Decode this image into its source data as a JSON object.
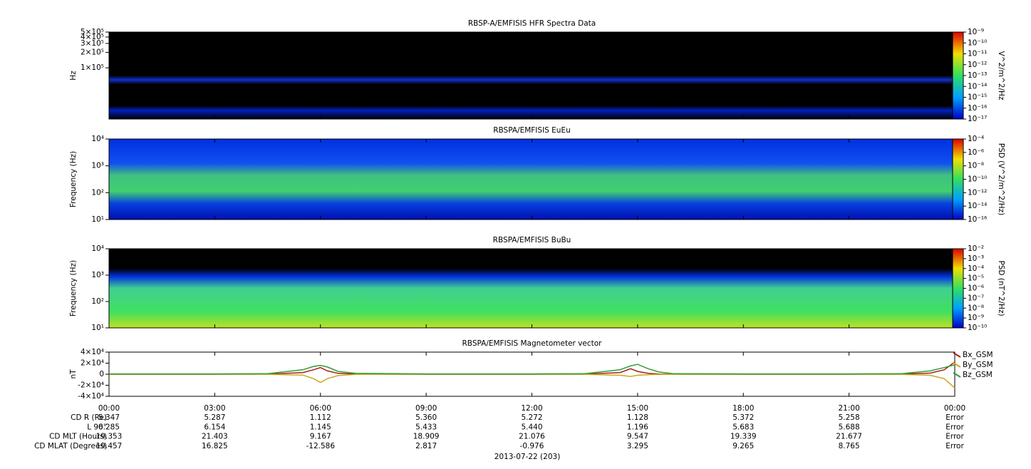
{
  "chart_data": [
    {
      "type": "spectrogram",
      "title": "RBSP-A/EMFISIS  HFR Spectra Data",
      "ylabel": "Hz",
      "log_scale": true,
      "ylim": [
        10000,
        500000
      ],
      "yticks": [
        {
          "value": 500000,
          "label": "5×10⁵"
        },
        {
          "value": 400000,
          "label": "4×10⁵"
        },
        {
          "value": 300000,
          "label": "3×10⁵"
        },
        {
          "value": 200000,
          "label": "2×10⁵"
        },
        {
          "value": 100000,
          "label": "1×10⁵"
        }
      ],
      "colorbar": {
        "label": "V^2/m^2/Hz",
        "lim": [
          1e-17,
          1e-09
        ],
        "ticks": [
          {
            "value": 1e-09,
            "label": "10⁻⁹"
          },
          {
            "value": 1e-10,
            "label": "10⁻¹⁰"
          },
          {
            "value": 1e-11,
            "label": "10⁻¹¹"
          },
          {
            "value": 1e-12,
            "label": "10⁻¹²"
          },
          {
            "value": 1e-13,
            "label": "10⁻¹³"
          },
          {
            "value": 1e-14,
            "label": "10⁻¹⁴"
          },
          {
            "value": 1e-15,
            "label": "10⁻¹⁵"
          },
          {
            "value": 1e-16,
            "label": "10⁻¹⁶"
          },
          {
            "value": 1e-17,
            "label": "10⁻¹⁷"
          }
        ]
      }
    },
    {
      "type": "spectrogram",
      "title": "RBSPA/EMFISIS  EuEu",
      "ylabel": "Frequency (Hz)",
      "log_scale": true,
      "ylim": [
        10,
        10000
      ],
      "yticks": [
        {
          "value": 10,
          "label": "10¹"
        },
        {
          "value": 100,
          "label": "10²"
        },
        {
          "value": 1000,
          "label": "10³"
        },
        {
          "value": 10000,
          "label": "10⁴"
        }
      ],
      "colorbar": {
        "label": "PSD (V^2/m^2/Hz)",
        "lim": [
          1e-16,
          0.0001
        ],
        "ticks": [
          {
            "value": 0.0001,
            "label": "10⁻⁴"
          },
          {
            "value": 1e-06,
            "label": "10⁻⁶"
          },
          {
            "value": 1e-08,
            "label": "10⁻⁸"
          },
          {
            "value": 1e-10,
            "label": "10⁻¹⁰"
          },
          {
            "value": 1e-12,
            "label": "10⁻¹²"
          },
          {
            "value": 1e-14,
            "label": "10⁻¹⁴"
          },
          {
            "value": 1e-16,
            "label": "10⁻¹⁶"
          }
        ]
      }
    },
    {
      "type": "spectrogram",
      "title": "RBSPA/EMFISIS  BuBu",
      "ylabel": "Frequency (Hz)",
      "log_scale": true,
      "ylim": [
        10,
        10000
      ],
      "yticks": [
        {
          "value": 10,
          "label": "10¹"
        },
        {
          "value": 100,
          "label": "10²"
        },
        {
          "value": 1000,
          "label": "10³"
        },
        {
          "value": 10000,
          "label": "10⁴"
        }
      ],
      "colorbar": {
        "label": "PSD (nT^2/Hz)",
        "lim": [
          1e-10,
          0.01
        ],
        "ticks": [
          {
            "value": 0.01,
            "label": "10⁻²"
          },
          {
            "value": 0.001,
            "label": "10⁻³"
          },
          {
            "value": 0.0001,
            "label": "10⁻⁴"
          },
          {
            "value": 1e-05,
            "label": "10⁻⁵"
          },
          {
            "value": 1e-06,
            "label": "10⁻⁶"
          },
          {
            "value": 1e-07,
            "label": "10⁻⁷"
          },
          {
            "value": 1e-08,
            "label": "10⁻⁸"
          },
          {
            "value": 1e-09,
            "label": "10⁻⁹"
          },
          {
            "value": 1e-10,
            "label": "10⁻¹⁰"
          }
        ]
      }
    },
    {
      "type": "line",
      "title": "RBSPA/EMFISIS  Magnetometer vector",
      "ylabel": "nT",
      "log_scale": false,
      "ylim": [
        -40000,
        40000
      ],
      "yticks": [
        {
          "value": 40000,
          "label": "4×10⁴"
        },
        {
          "value": 20000,
          "label": "2×10⁴"
        },
        0,
        {
          "value": -20000,
          "label": "-2×10⁴"
        },
        {
          "value": -40000,
          "label": "-4×10⁴"
        }
      ],
      "xlim": [
        0,
        24
      ],
      "xticks": [
        {
          "value": 0,
          "label": "00:00"
        },
        {
          "value": 3,
          "label": "03:00"
        },
        {
          "value": 6,
          "label": "06:00"
        },
        {
          "value": 9,
          "label": "09:00"
        },
        {
          "value": 12,
          "label": "12:00"
        },
        {
          "value": 15,
          "label": "15:00"
        },
        {
          "value": 18,
          "label": "18:00"
        },
        {
          "value": 21,
          "label": "21:00"
        },
        {
          "value": 24,
          "label": "00:00"
        }
      ],
      "x": [
        0,
        3,
        4.5,
        5.5,
        5.8,
        6,
        6.2,
        6.5,
        7,
        9,
        12,
        13.5,
        14.5,
        14.8,
        15,
        15.3,
        15.6,
        16,
        18,
        21,
        22.5,
        23.3,
        23.7,
        24
      ],
      "series": [
        {
          "name": "Bx_GSM",
          "color": "#a3201c",
          "values": [
            0,
            0,
            200,
            3000,
            8000,
            12000,
            6000,
            1500,
            200,
            0,
            0,
            100,
            3000,
            10000,
            5000,
            1500,
            300,
            100,
            0,
            0,
            200,
            2000,
            8000,
            22000
          ]
        },
        {
          "name": "By_GSM",
          "color": "#c9a81e",
          "values": [
            0,
            0,
            -100,
            -1500,
            -8000,
            -15000,
            -8000,
            -2500,
            -300,
            0,
            0,
            -100,
            -2000,
            -4000,
            -2000,
            -800,
            -200,
            -100,
            0,
            0,
            -200,
            -2000,
            -8000,
            -25000
          ]
        },
        {
          "name": "Bz_GSM",
          "color": "#2f9e2f",
          "values": [
            500,
            500,
            1000,
            8000,
            14000,
            16000,
            13000,
            5000,
            1500,
            500,
            500,
            1000,
            8000,
            15000,
            18000,
            10000,
            4000,
            1000,
            500,
            500,
            1000,
            6000,
            12000,
            17000
          ]
        }
      ]
    }
  ],
  "ephemeris": {
    "row_labels": [
      "CD R (Re)",
      "L 90°",
      "CD MLT (Hours)",
      "CD MLAT (Degrees)"
    ],
    "rows": [
      [
        "5.347",
        "5.287",
        "1.112",
        "5.360",
        "5.272",
        "1.128",
        "5.372",
        "5.258",
        "Error"
      ],
      [
        "6.285",
        "6.154",
        "1.145",
        "5.433",
        "5.440",
        "1.196",
        "5.683",
        "5.688",
        "Error"
      ],
      [
        "19.353",
        "21.403",
        "9.167",
        "18.909",
        "21.076",
        "9.547",
        "19.339",
        "21.677",
        "Error"
      ],
      [
        "19.457",
        "16.825",
        "-12.586",
        "2.817",
        "-0.976",
        "3.295",
        "9.265",
        "8.765",
        "Error"
      ]
    ]
  },
  "date_label": "2013-07-22 (203)"
}
